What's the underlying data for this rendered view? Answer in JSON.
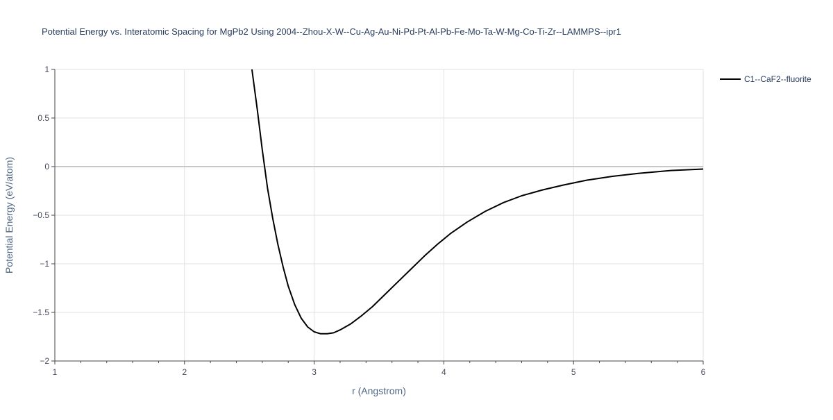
{
  "chart_data": {
    "type": "line",
    "title": "Potential Energy vs. Interatomic Spacing for MgPb2 Using 2004--Zhou-X-W--Cu-Ag-Au-Ni-Pd-Pt-Al-Pb-Fe-Mo-Ta-W-Mg-Co-Ti-Zr--LAMMPS--ipr1",
    "xlabel": "r (Angstrom)",
    "ylabel": "Potential Energy (eV/atom)",
    "xlim": [
      1,
      6
    ],
    "ylim": [
      -2,
      1
    ],
    "x_ticks": [
      1,
      2,
      3,
      4,
      5,
      6
    ],
    "x_tick_labels": [
      "1",
      "2",
      "3",
      "4",
      "5",
      "6"
    ],
    "y_ticks": [
      1,
      0.5,
      0,
      -0.5,
      -1,
      -1.5,
      -2
    ],
    "y_tick_labels": [
      "1",
      "0.5",
      "0",
      "−0.5",
      "−1",
      "−1.5",
      "−2"
    ],
    "grid": true,
    "legend_position": "top-right",
    "series": [
      {
        "name": "C1--CaF2--fluorite",
        "color": "#000000",
        "x": [
          2.52,
          2.56,
          2.6,
          2.64,
          2.68,
          2.72,
          2.76,
          2.8,
          2.85,
          2.9,
          2.95,
          3.0,
          3.05,
          3.1,
          3.15,
          3.2,
          3.28,
          3.36,
          3.45,
          3.55,
          3.65,
          3.75,
          3.85,
          3.95,
          4.05,
          4.18,
          4.32,
          4.46,
          4.6,
          4.76,
          4.92,
          5.1,
          5.3,
          5.5,
          5.75,
          6.0
        ],
        "y": [
          1.0,
          0.6,
          0.17,
          -0.22,
          -0.53,
          -0.8,
          -1.03,
          -1.23,
          -1.42,
          -1.56,
          -1.65,
          -1.7,
          -1.72,
          -1.72,
          -1.71,
          -1.68,
          -1.62,
          -1.54,
          -1.44,
          -1.31,
          -1.18,
          -1.05,
          -0.92,
          -0.8,
          -0.69,
          -0.57,
          -0.46,
          -0.37,
          -0.3,
          -0.24,
          -0.19,
          -0.14,
          -0.1,
          -0.07,
          -0.04,
          -0.025
        ]
      }
    ]
  }
}
